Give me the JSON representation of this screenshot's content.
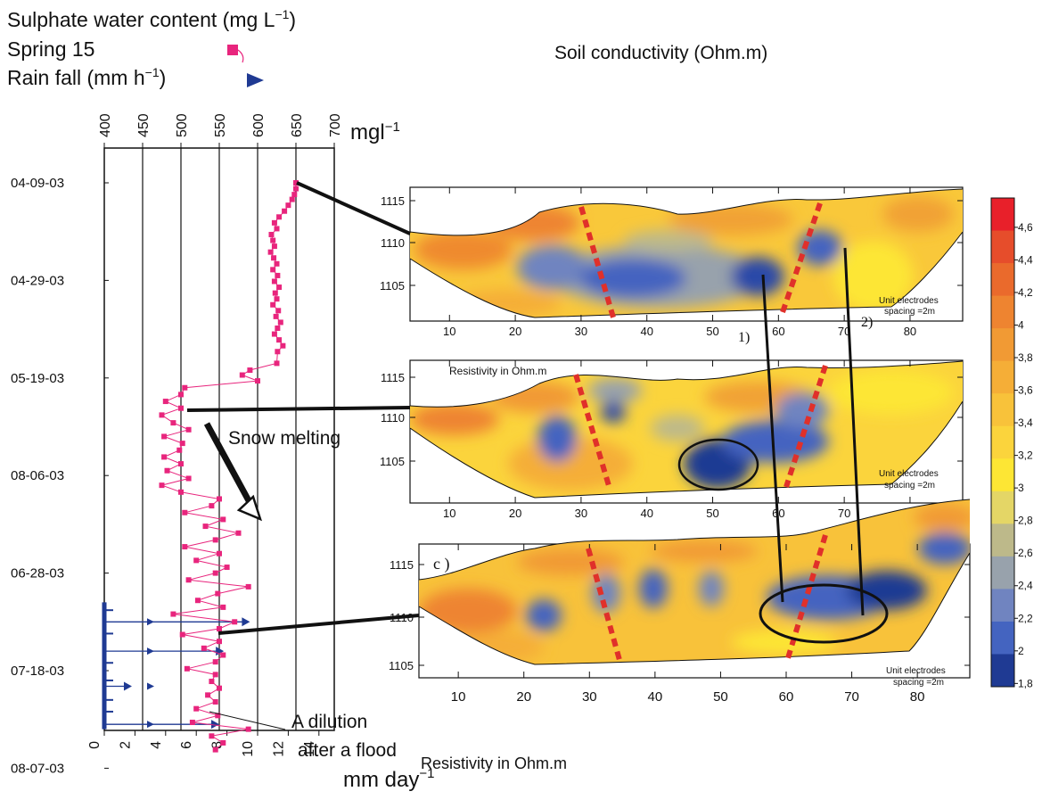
{
  "legend_block": {
    "sulphate_label": "Sulphate water content (mg L",
    "sulphate_sup": "−1",
    "sulphate_close": ")",
    "spring_label": "Spring 15",
    "rain_label": "Rain fall (mm h",
    "rain_sup": "−1",
    "rain_close": ")",
    "spring_color": "#e8257d",
    "rain_color": "#1f3a93"
  },
  "soil_title": "Soil conductivity (Ohm.m)",
  "annotations": {
    "snow_melting": "Snow melting",
    "dilution_line1": "A dilution",
    "dilution_line2": "after a flood",
    "panel_mid_label": "Resistivity in Ohm.m",
    "bottom_label": "Resistivity in Ohm.m",
    "c_label": "c )",
    "marker_1": "1)",
    "marker_2": "2)",
    "electrode_line1": "Unit electrodes",
    "electrode_line2": "spacing =2m"
  },
  "chart_data": [
    {
      "type": "line",
      "title": "",
      "top_axis": {
        "label": "mg",
        "label_unit": "l",
        "label_sup": "−1",
        "ticks": [
          400,
          450,
          500,
          550,
          600,
          650,
          700
        ],
        "range": [
          400,
          700
        ]
      },
      "bottom_axis": {
        "label": "mm day",
        "label_sup": "−1",
        "ticks": [
          0,
          2,
          4,
          6,
          8,
          10,
          12,
          14
        ],
        "range": [
          0,
          15
        ]
      },
      "date_axis": {
        "ticks": [
          "04-09-03",
          "04-29-03",
          "05-19-03",
          "08-06-03",
          "06-28-03",
          "07-18-03",
          "08-07-03"
        ]
      },
      "grid": true,
      "series": [
        {
          "name": "Spring 15",
          "color": "#e8257d",
          "date_index": [
            0.0,
            0.06,
            0.12,
            0.17,
            0.23,
            0.29,
            0.35,
            0.41,
            0.47,
            0.53,
            0.59,
            0.65,
            0.71,
            0.77,
            0.83,
            0.89,
            0.95,
            1.01,
            1.07,
            1.13,
            1.19,
            1.25,
            1.31,
            1.37,
            1.43,
            1.49,
            1.55,
            1.61,
            1.67,
            1.73,
            1.85,
            1.92,
            1.97,
            2.03,
            2.1,
            2.17,
            2.24,
            2.31,
            2.38,
            2.46,
            2.53,
            2.6,
            2.67,
            2.74,
            2.81,
            2.88,
            2.95,
            3.03,
            3.1,
            3.17,
            3.24,
            3.31,
            3.38,
            3.45,
            3.52,
            3.59,
            3.66,
            3.73,
            3.8,
            3.87,
            3.94,
            4.0,
            4.07,
            4.14,
            4.21,
            4.28,
            4.35,
            4.42,
            4.5,
            4.57,
            4.63,
            4.7,
            4.77,
            4.84,
            4.91,
            4.98,
            5.04,
            5.11,
            5.18,
            5.25,
            5.32,
            5.39,
            5.46,
            5.53,
            5.6,
            5.67,
            5.74,
            5.81
          ],
          "values": [
            650,
            650,
            648,
            645,
            640,
            635,
            628,
            622,
            625,
            618,
            620,
            622,
            617,
            621,
            625,
            620,
            626,
            622,
            628,
            623,
            625,
            620,
            627,
            624,
            630,
            626,
            622,
            628,
            633,
            626,
            625,
            590,
            580,
            600,
            505,
            500,
            480,
            500,
            475,
            490,
            510,
            478,
            502,
            498,
            478,
            500,
            482,
            510,
            475,
            500,
            550,
            540,
            505,
            555,
            532,
            575,
            545,
            505,
            550,
            520,
            560,
            545,
            510,
            588,
            548,
            522,
            555,
            490,
            570,
            550,
            502,
            550,
            530,
            555,
            545,
            508,
            545,
            540,
            550,
            535,
            545,
            520,
            548,
            515,
            588,
            540,
            555,
            545
          ]
        },
        {
          "name": "Rain fall",
          "color": "#1f3a93",
          "units": "mm day−1",
          "date_index": [
            4.5,
            4.8,
            5.16,
            5.55
          ],
          "values": [
            9.5,
            7.8,
            1.8,
            7.5
          ]
        }
      ]
    },
    {
      "type": "heatmap",
      "panel": "top",
      "xlabel": "",
      "x_ticks": [
        10,
        20,
        30,
        40,
        50,
        60,
        70,
        80
      ],
      "y_ticks": [
        1115,
        1110,
        1105
      ],
      "xlim": [
        4,
        88
      ]
    },
    {
      "type": "heatmap",
      "panel": "middle",
      "xlabel": "",
      "x_ticks": [
        10,
        20,
        30,
        40,
        50,
        60,
        70,
        80
      ],
      "y_ticks": [
        1115,
        1110,
        1105
      ],
      "xlim": [
        4,
        88
      ]
    },
    {
      "type": "heatmap",
      "panel": "bottom",
      "xlabel": "Resistivity in Ohm.m",
      "x_ticks": [
        10,
        20,
        30,
        40,
        50,
        60,
        70,
        80
      ],
      "y_ticks": [
        1115,
        1110,
        1105
      ],
      "xlim": [
        4,
        88
      ]
    },
    {
      "type": "heatmap",
      "panel": "colorbar",
      "ticks": [
        "4,6",
        "4,4",
        "4,2",
        "4",
        "3,8",
        "3,6",
        "3,4",
        "3,2",
        "3",
        "2,8",
        "2,6",
        "2,4",
        "2,2",
        "2",
        "1,8"
      ],
      "colors": [
        "#e8202a",
        "#e64d2b",
        "#ea6a2c",
        "#ee8430",
        "#f19a34",
        "#f5ae37",
        "#f8c23a",
        "#fbd43c",
        "#fde634",
        "#e4d666",
        "#bdb98a",
        "#98a2ac",
        "#7084c0",
        "#4464c0",
        "#1f3a93"
      ]
    }
  ]
}
